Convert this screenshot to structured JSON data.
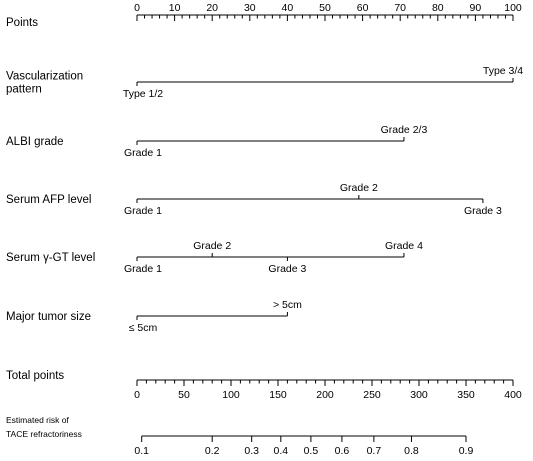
{
  "chart_data": {
    "type": "nomogram",
    "points_axis": {
      "label": "Points",
      "range": [
        0,
        100
      ],
      "labeled_ticks": [
        0,
        10,
        20,
        30,
        40,
        50,
        60,
        70,
        80,
        90,
        100
      ],
      "minor_step": 2
    },
    "variables": [
      {
        "id": "vascularization",
        "label_lines": [
          "Vascularization",
          "pattern"
        ],
        "levels": [
          {
            "label": "Type 1/2",
            "points": 0,
            "side": "below"
          },
          {
            "label": "Type 3/4",
            "points": 100,
            "side": "above"
          }
        ]
      },
      {
        "id": "albi",
        "label_lines": [
          "ALBI grade"
        ],
        "levels": [
          {
            "label": "Grade 1",
            "points": 0,
            "side": "below"
          },
          {
            "label": "Grade 2/3",
            "points": 71,
            "side": "above"
          }
        ]
      },
      {
        "id": "afp",
        "label_lines": [
          "Serum AFP level"
        ],
        "levels": [
          {
            "label": "Grade 1",
            "points": 0,
            "side": "below"
          },
          {
            "label": "Grade 2",
            "points": 59,
            "side": "above"
          },
          {
            "label": "Grade 3",
            "points": 92,
            "side": "below"
          }
        ]
      },
      {
        "id": "ggt",
        "label_lines": [
          "Serum γ-GT level"
        ],
        "levels": [
          {
            "label": "Grade 1",
            "points": 0,
            "side": "below"
          },
          {
            "label": "Grade 2",
            "points": 20,
            "side": "above"
          },
          {
            "label": "Grade 3",
            "points": 40,
            "side": "below"
          },
          {
            "label": "Grade 4",
            "points": 71,
            "side": "above"
          }
        ]
      },
      {
        "id": "tumor_size",
        "label_lines": [
          "Major tumor size"
        ],
        "levels": [
          {
            "label": "≤ 5cm",
            "points": 0,
            "side": "below"
          },
          {
            "label": "> 5cm",
            "points": 40,
            "side": "above"
          }
        ]
      }
    ],
    "total_points_axis": {
      "label": "Total points",
      "range": [
        0,
        400
      ],
      "labeled_ticks": [
        0,
        50,
        100,
        150,
        200,
        250,
        300,
        350,
        400
      ],
      "minor_step": 10
    },
    "risk_axis": {
      "label_lines": [
        "Estimated risk of",
        "TACE refractoriness"
      ],
      "ticks": [
        {
          "label": "0.1",
          "total_points": 5
        },
        {
          "label": "0.2",
          "total_points": 80
        },
        {
          "label": "0.3",
          "total_points": 122
        },
        {
          "label": "0.4",
          "total_points": 153
        },
        {
          "label": "0.5",
          "total_points": 185
        },
        {
          "label": "0.6",
          "total_points": 218
        },
        {
          "label": "0.7",
          "total_points": 252
        },
        {
          "label": "0.8",
          "total_points": 292
        },
        {
          "label": "0.9",
          "total_points": 350
        }
      ]
    }
  }
}
